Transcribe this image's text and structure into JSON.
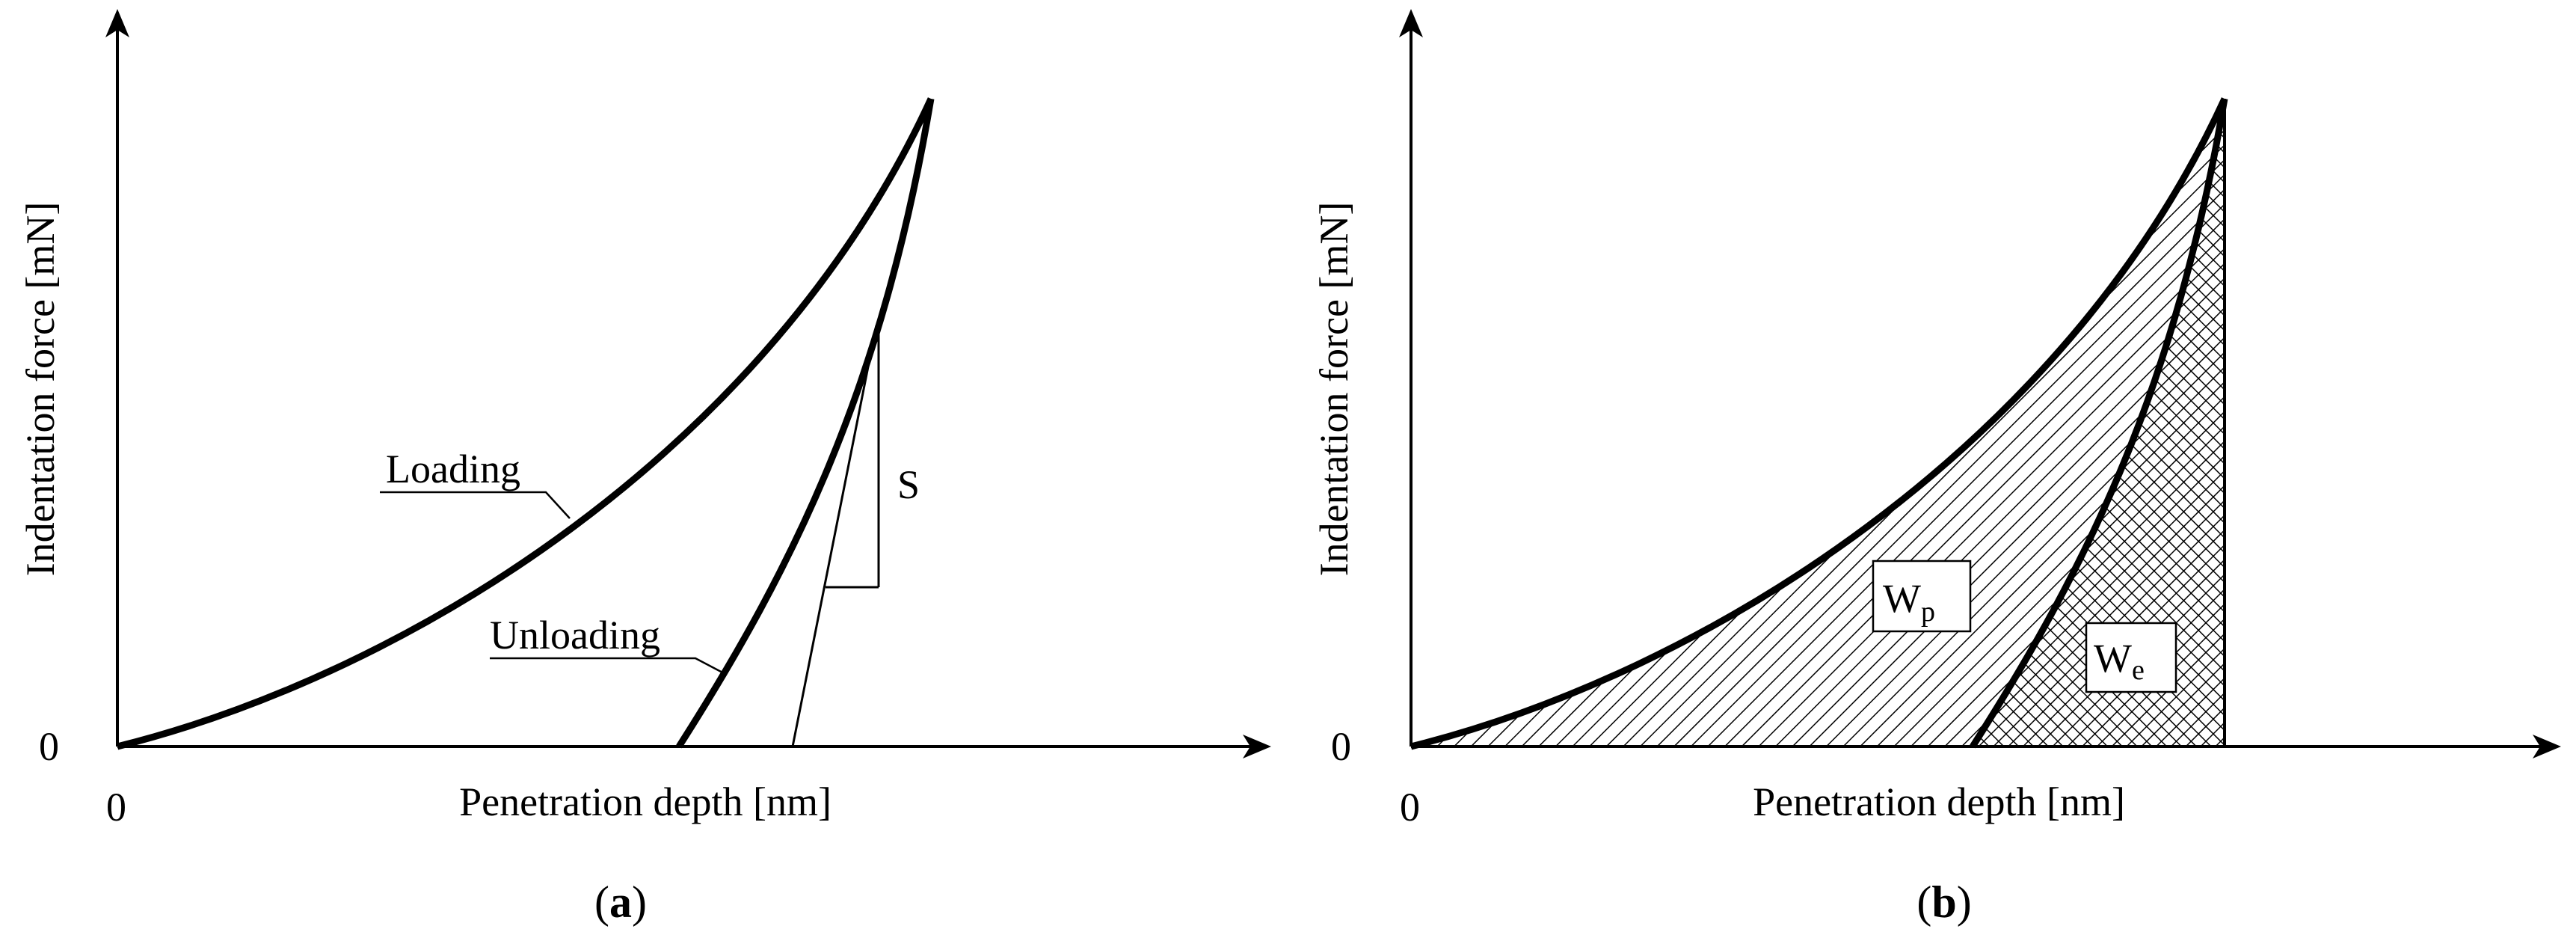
{
  "panel_a": {
    "ylabel": "Indentation force [mN]",
    "xlabel": "Penetration depth [nm]",
    "x_zero": "0",
    "y_zero": "0",
    "loading_label": "Loading",
    "unloading_label": "Unloading",
    "stiffness_label": "S",
    "caption_open": "(",
    "caption_letter": "a",
    "caption_close": ")"
  },
  "panel_b": {
    "ylabel": "Indentation force [mN]",
    "xlabel": "Penetration depth [nm]",
    "x_zero": "0",
    "y_zero": "0",
    "wp_main": "W",
    "wp_sub": "p",
    "we_main": "W",
    "we_sub": "e",
    "caption_open": "(",
    "caption_letter": "b",
    "caption_close": ")"
  }
}
